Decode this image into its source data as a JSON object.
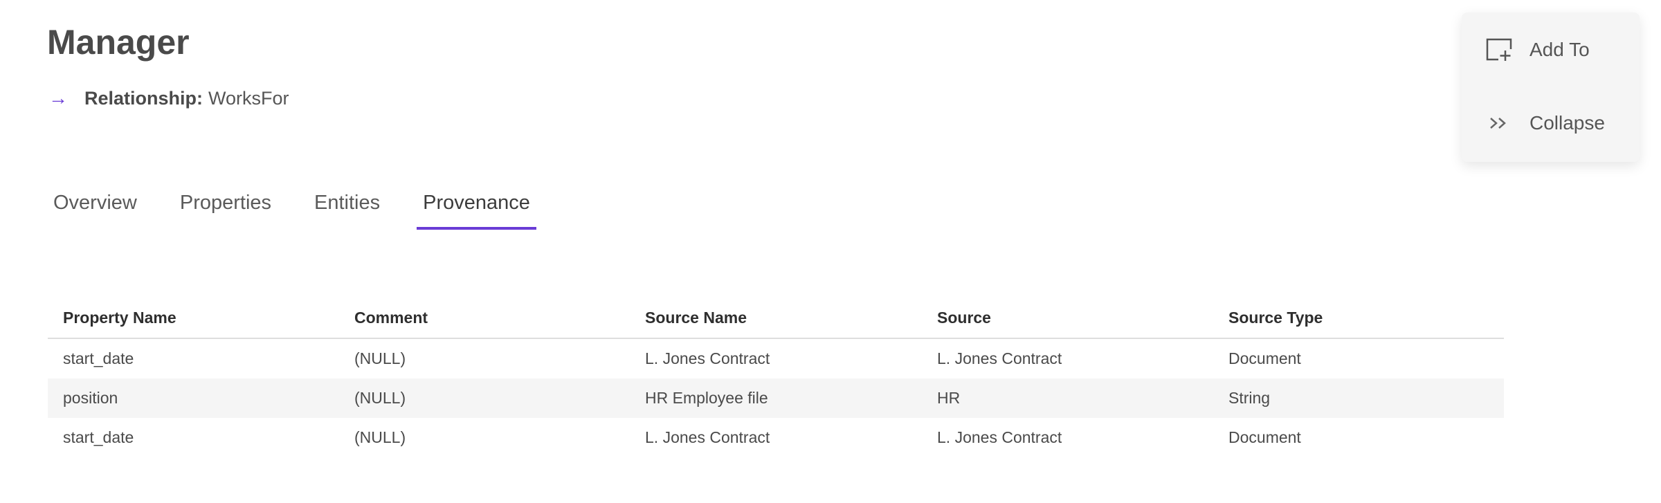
{
  "header": {
    "title": "Manager",
    "relationship_label": "Relationship:",
    "relationship_value": "WorksFor",
    "arrow_icon": "arrow-right-icon"
  },
  "tabs": [
    {
      "label": "Overview",
      "active": false
    },
    {
      "label": "Properties",
      "active": false
    },
    {
      "label": "Entities",
      "active": false
    },
    {
      "label": "Provenance",
      "active": true
    }
  ],
  "table": {
    "columns": [
      "Property Name",
      "Comment",
      "Source Name",
      "Source",
      "Source Type"
    ],
    "rows": [
      [
        "start_date",
        "(NULL)",
        "L. Jones Contract",
        "L. Jones Contract",
        "Document"
      ],
      [
        "position",
        "(NULL)",
        "HR Employee file",
        "HR",
        "String"
      ],
      [
        "start_date",
        "(NULL)",
        "L. Jones Contract",
        "L. Jones Contract",
        "Document"
      ]
    ]
  },
  "menu": {
    "add_to": {
      "label": "Add To",
      "icon": "add-to-icon"
    },
    "collapse": {
      "label": "Collapse",
      "icon": "double-chevron-right-icon"
    }
  },
  "colors": {
    "accent": "#6a3cd6",
    "row_alt": "#f5f5f5",
    "menu_bg": "#f5f5f5"
  }
}
